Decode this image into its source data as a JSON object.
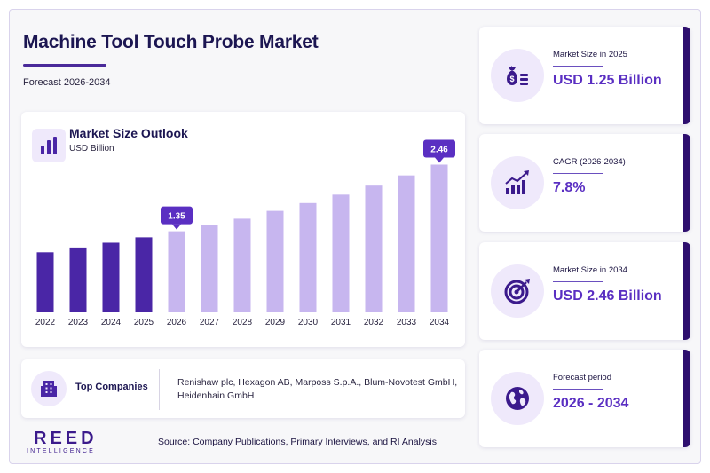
{
  "header": {
    "title": "Machine Tool Touch Probe Market",
    "subtitle": "Forecast 2026-2034"
  },
  "chart_data": {
    "type": "bar",
    "title": "Market Size Outlook",
    "unit": "USD Billion",
    "categories": [
      "2022",
      "2023",
      "2024",
      "2025",
      "2026",
      "2027",
      "2028",
      "2029",
      "2030",
      "2031",
      "2032",
      "2033",
      "2034"
    ],
    "values": [
      1.0,
      1.08,
      1.16,
      1.25,
      1.35,
      1.45,
      1.56,
      1.69,
      1.82,
      1.96,
      2.11,
      2.28,
      2.46
    ],
    "historical_color": "#4a26a6",
    "forecast_color": "#c7b6ef",
    "callouts": [
      {
        "category": "2026",
        "label": "1.35"
      },
      {
        "category": "2034",
        "label": "2.46"
      }
    ],
    "callout_color": "#5a2fc2",
    "ylim": [
      0,
      2.6
    ]
  },
  "companies": {
    "label": "Top Companies",
    "text": "Renishaw plc, Hexagon AB, Marposs S.p.A., Blum-Novotest GmbH, Heidenhain GmbH"
  },
  "stats": [
    {
      "label": "Market Size in 2025",
      "value": "USD 1.25 Billion",
      "icon": "money-bag-icon"
    },
    {
      "label": "CAGR (2026-2034)",
      "value": "7.8%",
      "icon": "growth-chart-icon"
    },
    {
      "label": "Market Size in 2034",
      "value": "USD 2.46 Billion",
      "icon": "target-icon"
    },
    {
      "label": "Forecast period",
      "value": "2026 - 2034",
      "icon": "globe-icon"
    }
  ],
  "brand": {
    "logo_top": "REED",
    "logo_bottom": "INTELLIGENCE",
    "accent": "#3b1a8c"
  },
  "footer": {
    "source": "Source: Company Publications, Primary Interviews, and RI Analysis"
  }
}
